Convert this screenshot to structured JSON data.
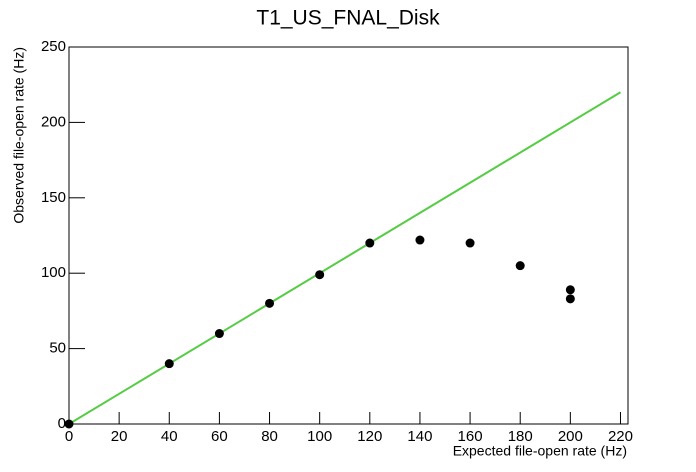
{
  "chart_data": {
    "type": "scatter",
    "title": "T1_US_FNAL_Disk",
    "x_label": "Expected file-open rate (Hz)",
    "y_label": "Observed file-open rate (Hz)",
    "x": [
      0,
      40,
      60,
      80,
      100,
      120,
      140,
      160,
      180,
      200,
      200
    ],
    "values": [
      0,
      40,
      60,
      80,
      99,
      120,
      122,
      120,
      105,
      89,
      83
    ],
    "color": "#000000",
    "reference_line": {
      "x": [
        0,
        220
      ],
      "values": [
        0,
        220
      ],
      "color": "#55cc44"
    },
    "xlim": [
      0,
      223
    ],
    "ylim": [
      0,
      250
    ],
    "xticks": [
      0,
      20,
      40,
      60,
      80,
      100,
      120,
      140,
      160,
      180,
      200,
      220
    ],
    "yticks": [
      0,
      50,
      100,
      150,
      200,
      250
    ]
  }
}
